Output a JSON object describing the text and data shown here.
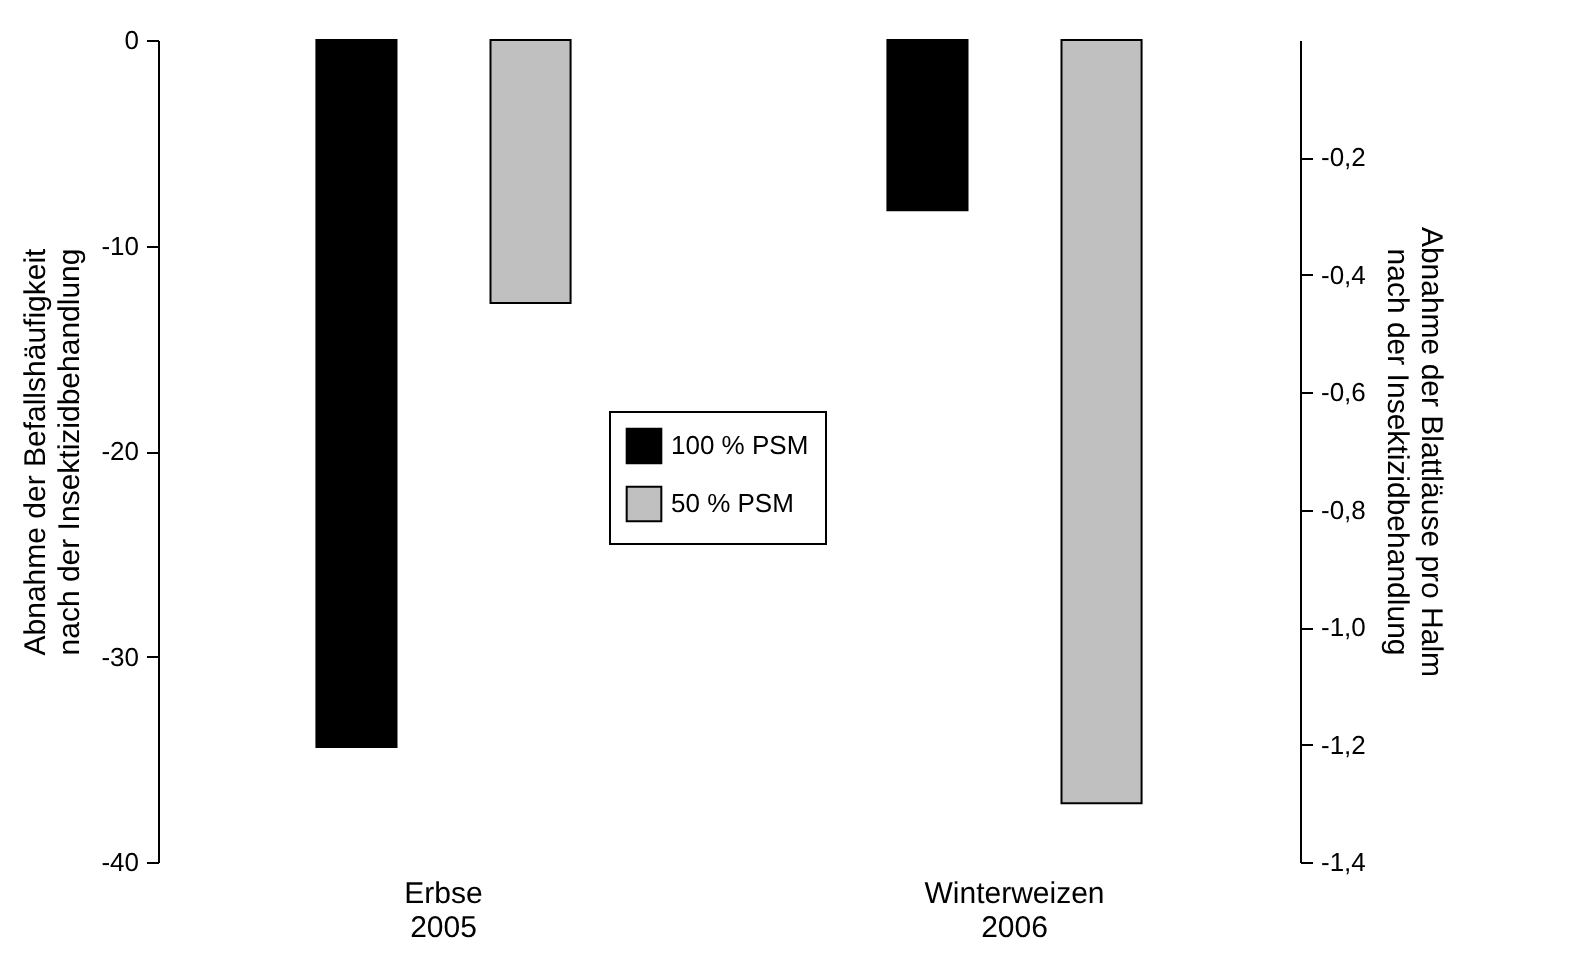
{
  "chart_data": {
    "type": "bar",
    "categories": [
      "Erbse\n2005",
      "Winterweizen\n2006"
    ],
    "ylabel": "Abnahme der Befallshäufigkeit\nnach der Insektizidbehandlung",
    "y2label": "Abnahme der Blattläuse pro Halm\nnach der Insektizidbehandlung",
    "series": [
      {
        "name": "100 % PSM",
        "color": "#000000",
        "values": [
          -34.4,
          null
        ]
      },
      {
        "name": "50 % PSM",
        "color": "#c0c0c0",
        "values": [
          -12.8,
          null
        ]
      },
      {
        "color": "#000000",
        "axis": "y2",
        "values": [
          null,
          -0.29
        ]
      },
      {
        "color": "#c0c0c0",
        "axis": "y2",
        "values": [
          null,
          -1.3
        ]
      }
    ],
    "ylim": [
      -40,
      0
    ],
    "yticks": [
      0,
      -10,
      -20,
      -30,
      -40
    ],
    "y2lim": [
      -1.4,
      0
    ],
    "y2ticks": [
      {
        "value": -0.2,
        "label": "-0,2"
      },
      {
        "value": -0.4,
        "label": "-0,4"
      },
      {
        "value": -0.6,
        "label": "-0,6"
      },
      {
        "value": -0.8,
        "label": "-0,8"
      },
      {
        "value": -1.0,
        "label": "-1,0"
      },
      {
        "value": -1.2,
        "label": "-1,2"
      },
      {
        "value": -1.4,
        "label": "-1,4"
      }
    ],
    "legend": "center",
    "grid": false
  }
}
